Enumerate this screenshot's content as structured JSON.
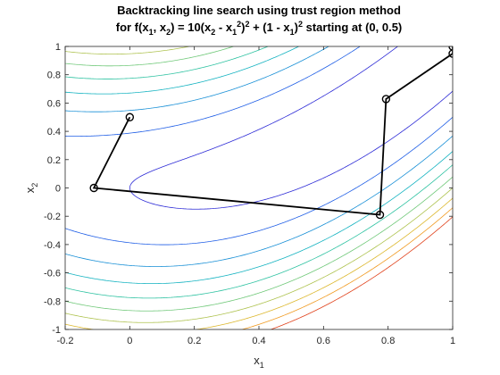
{
  "chart_data": {
    "type": "line",
    "title_lines": [
      {
        "parts": [
          {
            "t": "Backtracking line search using trust region method",
            "s": "n"
          }
        ]
      },
      {
        "parts": [
          {
            "t": "for f(x",
            "s": "n"
          },
          {
            "t": "1",
            "s": "sub"
          },
          {
            "t": ", x",
            "s": "n"
          },
          {
            "t": "2",
            "s": "sub"
          },
          {
            "t": ") = 10(x",
            "s": "n"
          },
          {
            "t": "2",
            "s": "sub"
          },
          {
            "t": " - x",
            "s": "n"
          },
          {
            "t": "1",
            "s": "sub"
          },
          {
            "t": "2",
            "s": "sup"
          },
          {
            "t": ")",
            "s": "n"
          },
          {
            "t": "2",
            "s": "sup"
          },
          {
            "t": " + (1 - x",
            "s": "n"
          },
          {
            "t": "1",
            "s": "sub"
          },
          {
            "t": ")",
            "s": "n"
          },
          {
            "t": "2",
            "s": "sup"
          },
          {
            "t": " starting at (0, 0.5)",
            "s": "n"
          }
        ]
      }
    ],
    "xlabel": {
      "base": "x",
      "sub": "1"
    },
    "ylabel": {
      "base": "x",
      "sub": "2"
    },
    "xlim": [
      -0.2,
      1
    ],
    "ylim": [
      -1,
      1
    ],
    "xticks": [
      -0.2,
      0,
      0.2,
      0.4,
      0.6,
      0.8,
      1
    ],
    "xtick_labels": [
      "-0.2",
      "0",
      "0.2",
      "0.4",
      "0.6",
      "0.8",
      "1"
    ],
    "yticks": [
      -1,
      -0.8,
      -0.6,
      -0.4,
      -0.2,
      0,
      0.2,
      0.4,
      0.6,
      0.8,
      1
    ],
    "ytick_labels": [
      "-1",
      "-0.8",
      "-0.6",
      "-0.4",
      "-0.2",
      "0",
      "0.2",
      "0.4",
      "0.6",
      "0.8",
      "1"
    ],
    "grid": false,
    "contours": {
      "function": "10*(x2 - x1^2)^2 + (1 - x1)^2",
      "levels": [
        1,
        2.5,
        4,
        5.5,
        7,
        8.5,
        10,
        11.5,
        13,
        14.5
      ],
      "colors": [
        "#2c2ad6",
        "#1f5ee6",
        "#178fd6",
        "#12b2c0",
        "#2dc2a1",
        "#6fc878",
        "#aec24e",
        "#dcb72c",
        "#f09a20",
        "#e0401a"
      ]
    },
    "path": {
      "x": [
        0,
        -0.1111,
        0.7747,
        0.7937,
        1.0,
        1.0
      ],
      "y": [
        0.5,
        0.0,
        -0.1896,
        0.6283,
        0.9494,
        1.0
      ],
      "color": "#000000",
      "marker": "circle"
    }
  }
}
